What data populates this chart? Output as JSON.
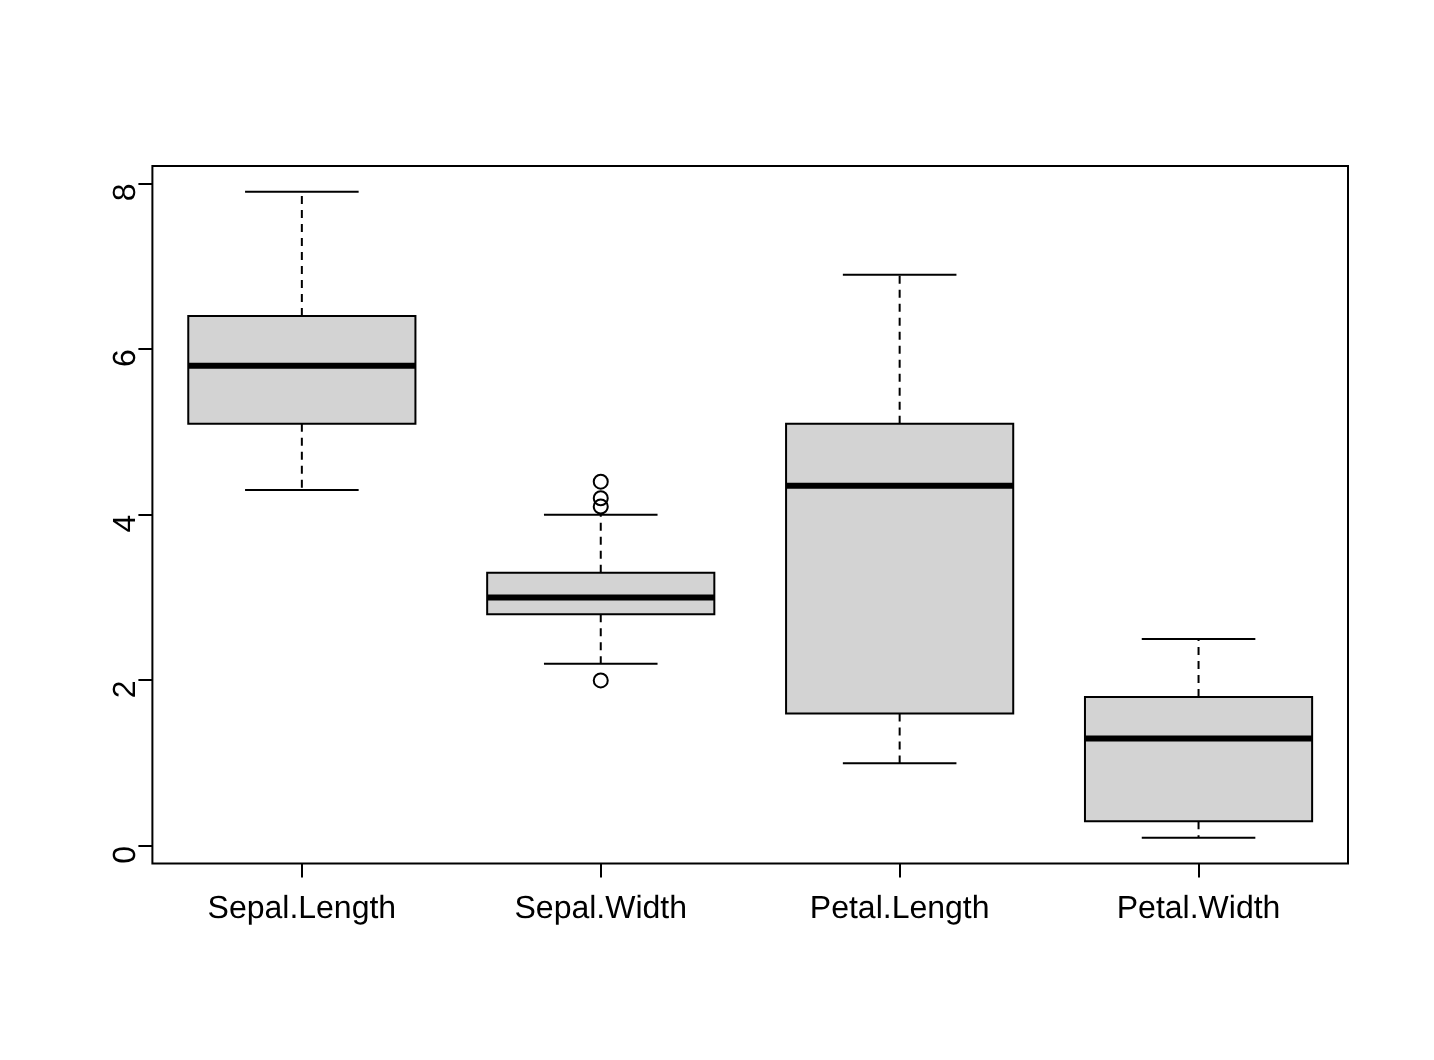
{
  "chart_data": {
    "type": "box",
    "categories": [
      "Sepal.Length",
      "Sepal.Width",
      "Petal.Length",
      "Petal.Width"
    ],
    "series": [
      {
        "color": "#d3d3d3",
        "boxes": [
          {
            "low": 4.3,
            "q1": 5.1,
            "median": 5.8,
            "q3": 6.4,
            "high": 7.9
          },
          {
            "low": 2.2,
            "q1": 2.8,
            "median": 3.0,
            "q3": 3.3,
            "high": 4.0,
            "outliers": [
              4.4,
              4.1,
              4.2,
              2.0
            ]
          },
          {
            "low": 1.0,
            "q1": 1.6,
            "median": 4.35,
            "q3": 5.1,
            "high": 6.9
          },
          {
            "low": 0.1,
            "q1": 0.3,
            "median": 1.3,
            "q3": 1.8,
            "high": 2.5
          }
        ]
      }
    ],
    "ylim": [
      -0.212,
      8.212
    ],
    "yticks": [
      0,
      2,
      4,
      6,
      8
    ]
  }
}
